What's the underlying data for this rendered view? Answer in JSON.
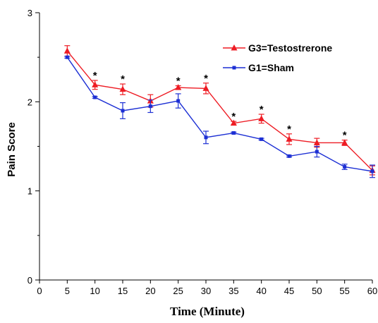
{
  "chart_data": {
    "type": "line",
    "title": "",
    "xlabel": "Time (Minute)",
    "ylabel": "Pain Score",
    "xlim": [
      0,
      60
    ],
    "ylim": [
      0,
      3
    ],
    "x_ticks": [
      0,
      5,
      10,
      15,
      20,
      25,
      30,
      35,
      40,
      45,
      50,
      55,
      60
    ],
    "y_ticks": [
      0,
      1,
      2,
      3
    ],
    "x_tick_labels": [
      "0",
      "5",
      "10",
      "15",
      "20",
      "25",
      "30",
      "35",
      "40",
      "45",
      "50",
      "55",
      "60"
    ],
    "y_tick_labels": [
      "0",
      "1",
      "2",
      "3"
    ],
    "grid": false,
    "legend_position": "top-right",
    "x": [
      5,
      10,
      15,
      20,
      25,
      30,
      35,
      40,
      45,
      50,
      55,
      60
    ],
    "series": [
      {
        "name": "G3=Testostrerone",
        "color": "#ee1c24",
        "marker": "triangle",
        "values": [
          2.57,
          2.19,
          2.14,
          2.01,
          2.16,
          2.15,
          1.76,
          1.81,
          1.58,
          1.54,
          1.54,
          1.23
        ],
        "errors": [
          0.06,
          0.05,
          0.06,
          0.07,
          0.02,
          0.06,
          0.02,
          0.05,
          0.06,
          0.05,
          0.03,
          0.05
        ]
      },
      {
        "name": "G1=Sham",
        "color": "#1c2fd4",
        "marker": "square",
        "values": [
          2.5,
          2.05,
          1.9,
          1.95,
          2.01,
          1.6,
          1.65,
          1.58,
          1.39,
          1.44,
          1.27,
          1.22
        ],
        "errors": [
          0.01,
          0.01,
          0.09,
          0.07,
          0.08,
          0.07,
          0.01,
          0.01,
          0.01,
          0.06,
          0.03,
          0.07
        ]
      }
    ],
    "annotations": [
      {
        "x": 10,
        "text": "*"
      },
      {
        "x": 15,
        "text": "*"
      },
      {
        "x": 25,
        "text": "*"
      },
      {
        "x": 30,
        "text": "*"
      },
      {
        "x": 35,
        "text": "*"
      },
      {
        "x": 40,
        "text": "*"
      },
      {
        "x": 45,
        "text": "*"
      },
      {
        "x": 55,
        "text": "*"
      }
    ]
  }
}
